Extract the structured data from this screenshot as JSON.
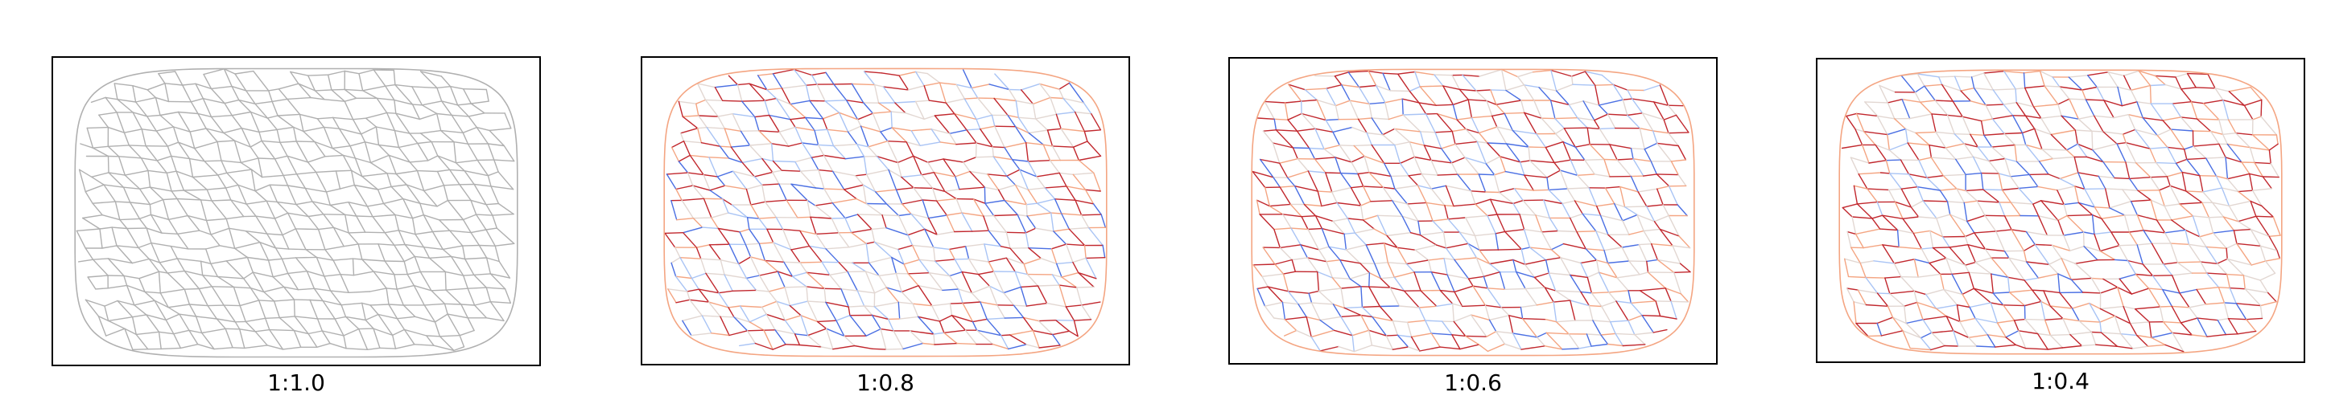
{
  "figure": {
    "panels": [
      {
        "label": "1:1.0",
        "aspect": 1.0,
        "colormap": "gray"
      },
      {
        "label": "1:0.8",
        "aspect": 0.8,
        "colormap": "coolwarm"
      },
      {
        "label": "1:0.6",
        "aspect": 0.6,
        "colormap": "coolwarm"
      },
      {
        "label": "1:0.4",
        "aspect": 0.4,
        "colormap": "coolwarm"
      }
    ],
    "colors": {
      "gray_edge": "#b0b0b0",
      "cool": "#4a6fe3",
      "light_cool": "#a9c4f5",
      "neutral": "#e2d7d2",
      "light_warm": "#f4a582",
      "warm": "#c1272d"
    }
  }
}
